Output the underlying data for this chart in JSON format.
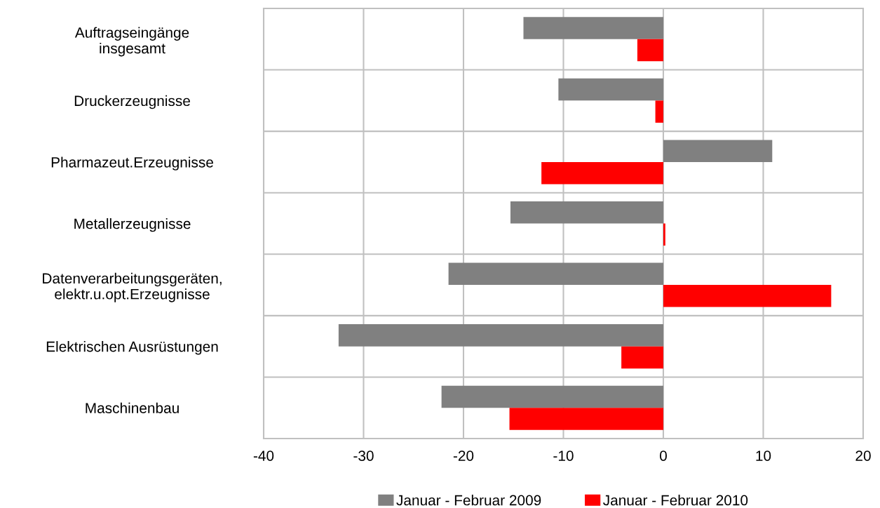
{
  "chart_data": {
    "type": "bar",
    "orientation": "horizontal",
    "categories": [
      "Auftragseingänge\ninsgesamt",
      "Druckerzeugnisse",
      "Pharmazeut.Erzeugnisse",
      "Metallerzeugnisse",
      "Datenverarbeitungsgeräten,\nelektr.u.opt.Erzeugnisse",
      "Elektrischen Ausrüstungen",
      "Maschinenbau"
    ],
    "series": [
      {
        "name": "Januar - Februar 2009",
        "color": "#808080",
        "values": [
          -14,
          -10.5,
          10.9,
          -15.3,
          -21.5,
          -32.5,
          -22.2
        ]
      },
      {
        "name": "Januar - Februar 2010",
        "color": "#ff0000",
        "values": [
          -2.6,
          -0.8,
          -12.2,
          0.2,
          16.8,
          -4.2,
          -15.4
        ]
      }
    ],
    "xlim": [
      -40,
      20
    ],
    "xticks": [
      -40,
      -30,
      -20,
      -10,
      0,
      10,
      20
    ],
    "grid": true,
    "legend": "bottom"
  }
}
